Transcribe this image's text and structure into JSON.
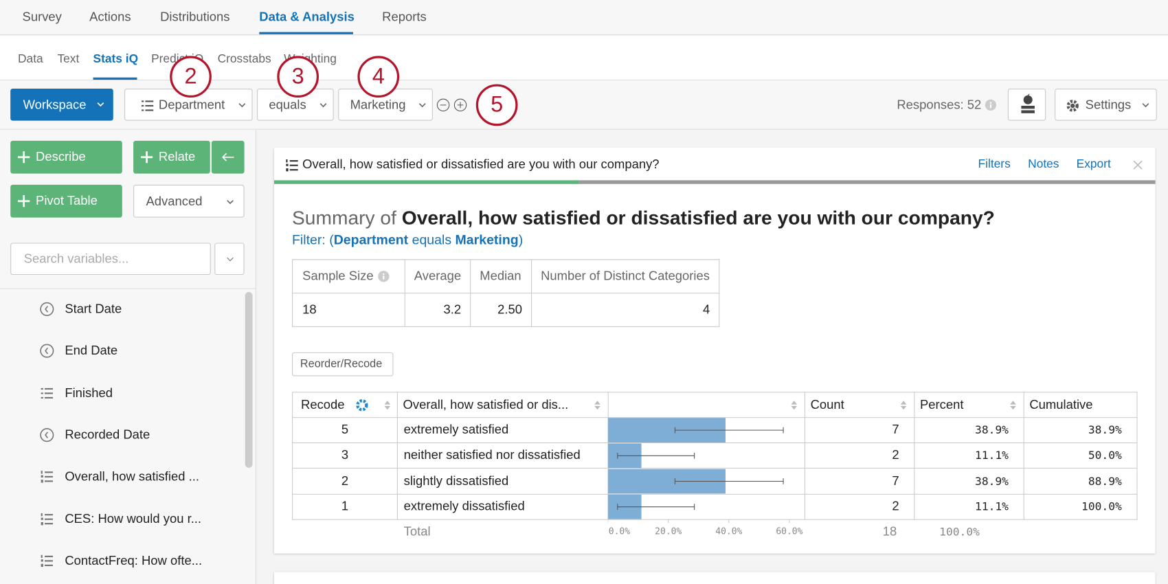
{
  "top_nav": {
    "items": [
      "Survey",
      "Actions",
      "Distributions",
      "Data & Analysis",
      "Reports"
    ],
    "active": 3
  },
  "sub_nav": {
    "items": [
      "Data",
      "Text",
      "Stats iQ",
      "Predict iQ",
      "Crosstabs",
      "Weighting"
    ],
    "active": 2
  },
  "toolbar": {
    "workspace": "Workspace",
    "field": "Department",
    "operator": "equals",
    "value": "Marketing",
    "responses": "Responses: 52",
    "settings": "Settings"
  },
  "callouts": [
    "2",
    "3",
    "4",
    "5"
  ],
  "sidebar": {
    "describe": "Describe",
    "relate": "Relate",
    "pivot_table": "Pivot Table",
    "advanced": "Advanced",
    "search_placeholder": "Search variables...",
    "variables": [
      {
        "icon": "clock",
        "label": "Start Date"
      },
      {
        "icon": "clock",
        "label": "End Date"
      },
      {
        "icon": "list",
        "label": "Finished"
      },
      {
        "icon": "clock",
        "label": "Recorded Date"
      },
      {
        "icon": "ordered",
        "label": "Overall, how satisfied ..."
      },
      {
        "icon": "ordered",
        "label": "CES: How would you r..."
      },
      {
        "icon": "ordered",
        "label": "ContactFreq: How ofte..."
      }
    ]
  },
  "card": {
    "title": "Overall, how satisfied or dissatisfied are you with our company?",
    "links": [
      "Filters",
      "Notes",
      "Export"
    ],
    "summary_prefix": "Summary of",
    "summary_title": "Overall, how satisfied or dissatisfied are you with our company?",
    "filter": [
      "Filter: (",
      "Department",
      " equals ",
      "Marketing",
      ")"
    ],
    "stats": {
      "headers": [
        "Sample Size",
        "Average",
        "Median",
        "Number of Distinct Categories"
      ],
      "values": [
        "18",
        "3.2",
        "2.50",
        "4"
      ]
    },
    "reorder_button": "Reorder/Recode",
    "table": {
      "headers": [
        "Recode",
        "Overall, how satisfied or dis...",
        "Count",
        "Percent",
        "Cumulative"
      ],
      "rows": [
        [
          "5",
          "extremely satisfied",
          "7",
          "38.9%",
          "38.9%"
        ],
        [
          "3",
          "neither satisfied nor dissatisfied",
          "2",
          "11.1%",
          "50.0%"
        ],
        [
          "2",
          "slightly dissatisfied",
          "7",
          "38.9%",
          "88.9%"
        ],
        [
          "1",
          "extremely dissatisfied",
          "2",
          "11.1%",
          "100.0%"
        ]
      ],
      "total": [
        "Total",
        "18",
        "100.0%"
      ]
    },
    "bar_chart": {
      "values": [
        38.9,
        11.1,
        38.9,
        11.1
      ],
      "error_low": [
        22.2,
        3.2,
        22.2,
        3.2
      ],
      "error_high": [
        58.0,
        28.6,
        58.0,
        28.6
      ],
      "xlim": [
        0,
        65
      ],
      "xticks": [
        {
          "value": 0,
          "label": "0.0%"
        },
        {
          "value": 20,
          "label": "20.0%"
        },
        {
          "value": 40,
          "label": "40.0%"
        },
        {
          "value": 60,
          "label": "60.0%"
        }
      ],
      "color": "#7eadd6"
    }
  }
}
